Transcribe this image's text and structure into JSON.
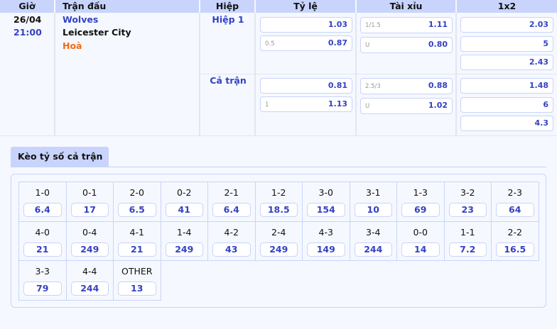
{
  "headers": [
    "Giờ",
    "Trận đấu",
    "Hiệp",
    "Tỷ lệ",
    "Tài xỉu",
    "1x2"
  ],
  "match": {
    "date": "26/04",
    "time": "21:00",
    "home": "Wolves",
    "away": "Leicester City",
    "draw": "Hoà"
  },
  "periods": [
    {
      "label": "Hiệp 1",
      "handicap": [
        {
          "line": "",
          "odds": "1.03"
        },
        {
          "line": "0.5",
          "odds": "0.87"
        }
      ],
      "overunder": [
        {
          "line": "1/1.5",
          "odds": "1.11"
        },
        {
          "line": "U",
          "odds": "0.80"
        }
      ],
      "x12": [
        "2.03",
        "5",
        "2.43"
      ]
    },
    {
      "label": "Cả trận",
      "handicap": [
        {
          "line": "",
          "odds": "0.81"
        },
        {
          "line": "1",
          "odds": "1.13"
        }
      ],
      "overunder": [
        {
          "line": "2.5/3",
          "odds": "0.88"
        },
        {
          "line": "U",
          "odds": "1.02"
        }
      ],
      "x12": [
        "1.48",
        "6",
        "4.3"
      ]
    }
  ],
  "correct_score": {
    "tab_label": "Kèo tỷ số cả trận",
    "items": [
      {
        "score": "1-0",
        "odds": "6.4"
      },
      {
        "score": "0-1",
        "odds": "17"
      },
      {
        "score": "2-0",
        "odds": "6.5"
      },
      {
        "score": "0-2",
        "odds": "41"
      },
      {
        "score": "2-1",
        "odds": "6.4"
      },
      {
        "score": "1-2",
        "odds": "18.5"
      },
      {
        "score": "3-0",
        "odds": "154"
      },
      {
        "score": "3-1",
        "odds": "10"
      },
      {
        "score": "1-3",
        "odds": "69"
      },
      {
        "score": "3-2",
        "odds": "23"
      },
      {
        "score": "2-3",
        "odds": "64"
      },
      {
        "score": "4-0",
        "odds": "21"
      },
      {
        "score": "0-4",
        "odds": "249"
      },
      {
        "score": "4-1",
        "odds": "21"
      },
      {
        "score": "1-4",
        "odds": "249"
      },
      {
        "score": "4-2",
        "odds": "43"
      },
      {
        "score": "2-4",
        "odds": "249"
      },
      {
        "score": "4-3",
        "odds": "149"
      },
      {
        "score": "3-4",
        "odds": "244"
      },
      {
        "score": "0-0",
        "odds": "14"
      },
      {
        "score": "1-1",
        "odds": "7.2"
      },
      {
        "score": "2-2",
        "odds": "16.5"
      },
      {
        "score": "3-3",
        "odds": "79"
      },
      {
        "score": "4-4",
        "odds": "244"
      },
      {
        "score": "OTHER",
        "odds": "13"
      }
    ]
  },
  "colors": {
    "header_bg": "#c8d4fc",
    "accent": "#3341c6",
    "draw": "#f26a12"
  }
}
